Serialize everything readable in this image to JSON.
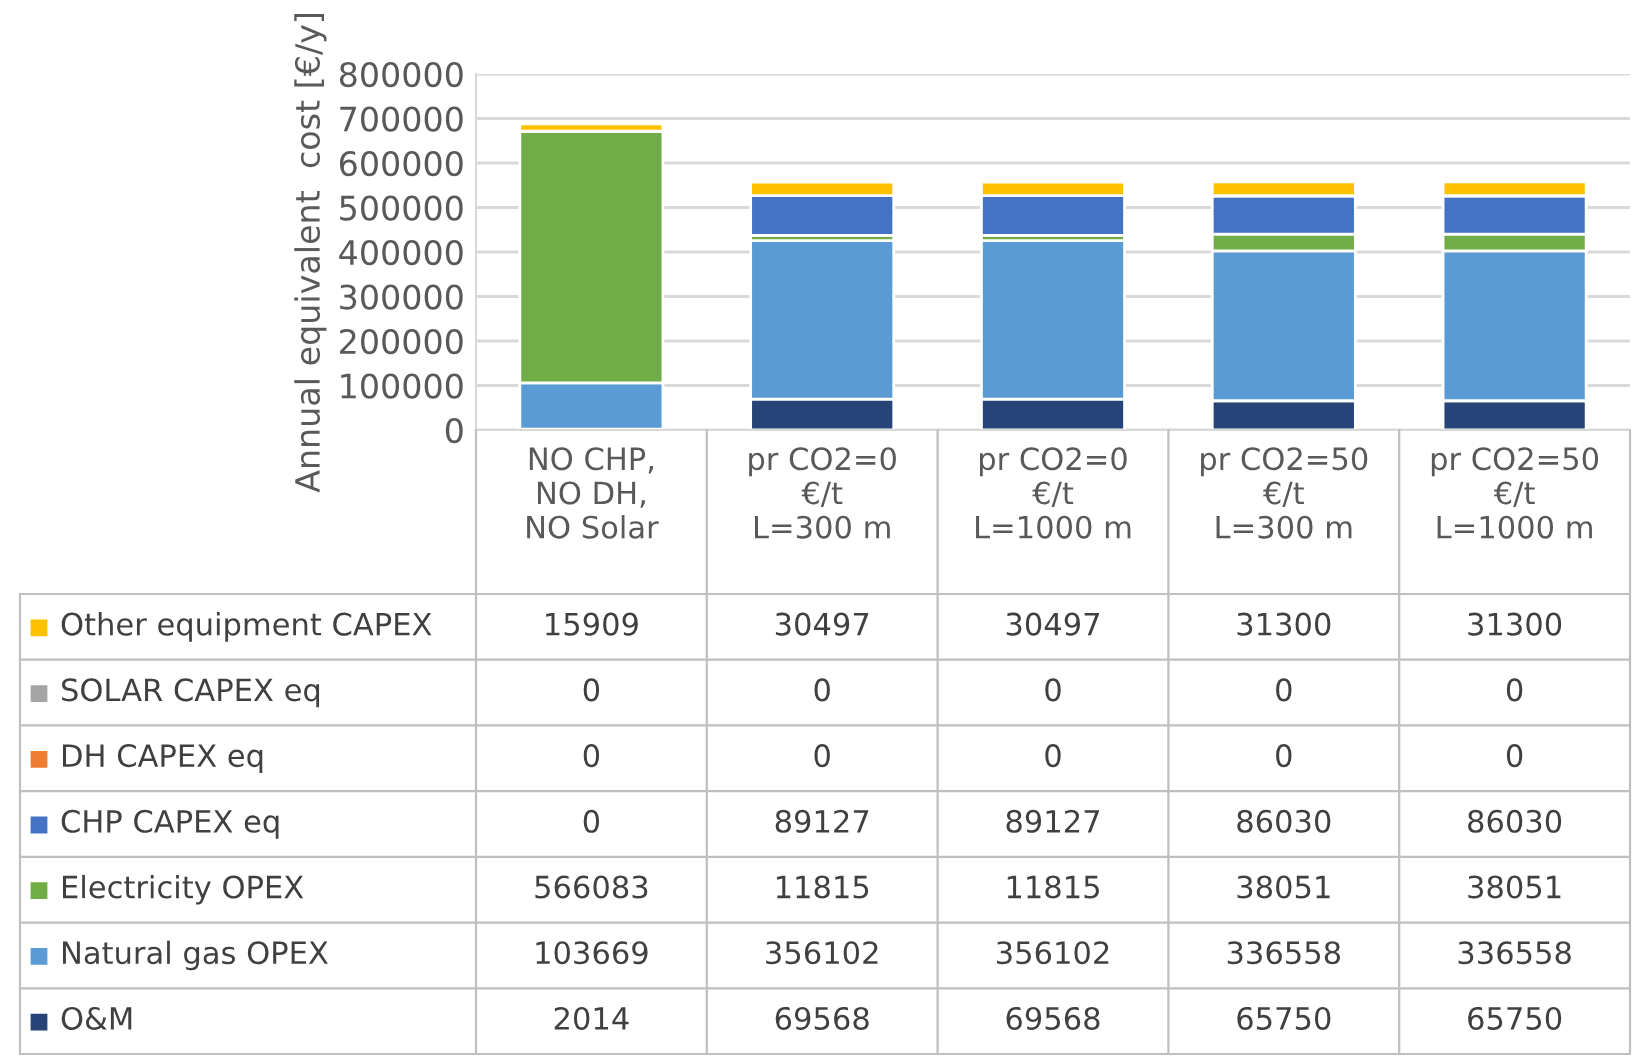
{
  "chart_data": {
    "type": "bar",
    "stacked": true,
    "ylabel": "Annual equivalent  cost [€/y]",
    "categories": [
      "NO CHP,\nNO DH,\nNO Solar",
      "pr CO2=0\n€/t\nL=300 m",
      "pr CO2=0\n€/t\nL=1000 m",
      "pr CO2=50\n€/t\nL=300 m",
      "pr CO2=50\n€/t\nL=1000 m"
    ],
    "series": [
      {
        "name": "O&M",
        "color": "#264478",
        "values": [
          2014,
          69568,
          69568,
          65750,
          65750
        ],
        "value_labels": [
          "2014",
          "69568",
          "69568",
          "65750",
          "65750"
        ]
      },
      {
        "name": "Natural gas OPEX",
        "color": "#5b9bd5",
        "values": [
          103669,
          356102,
          356102,
          336558,
          336558
        ],
        "value_labels": [
          "103669",
          "356102",
          "356102",
          "336558",
          "336558"
        ]
      },
      {
        "name": "Electricity OPEX",
        "color": "#70ad47",
        "values": [
          566083,
          11815,
          11815,
          38051,
          38051
        ],
        "value_labels": [
          "566083",
          "11815",
          "11815",
          "38051",
          "38051"
        ]
      },
      {
        "name": "CHP CAPEX eq",
        "color": "#4472c4",
        "values": [
          0,
          89127,
          89127,
          86030,
          86030
        ],
        "value_labels": [
          "0",
          "89127",
          "89127",
          "86030",
          "86030"
        ]
      },
      {
        "name": "DH CAPEX eq",
        "color": "#ed7d31",
        "values": [
          0,
          0,
          0,
          0,
          0
        ],
        "value_labels": [
          "0",
          "0",
          "0",
          "0",
          "0"
        ]
      },
      {
        "name": "SOLAR CAPEX eq",
        "color": "#a5a5a5",
        "values": [
          0,
          0,
          0,
          0,
          0
        ],
        "value_labels": [
          "0",
          "0",
          "0",
          "0",
          "0"
        ]
      },
      {
        "name": "Other equipment CAPEX",
        "color": "#ffc000",
        "values": [
          15909,
          30497,
          30497,
          31300,
          31300
        ],
        "value_labels": [
          "15909",
          "30497",
          "30497",
          "31300",
          "31300"
        ]
      }
    ],
    "ylim": [
      0,
      800000
    ],
    "yticks": [
      0,
      100000,
      200000,
      300000,
      400000,
      500000,
      600000,
      700000,
      800000
    ],
    "grid": "y",
    "legend": "bottom"
  }
}
